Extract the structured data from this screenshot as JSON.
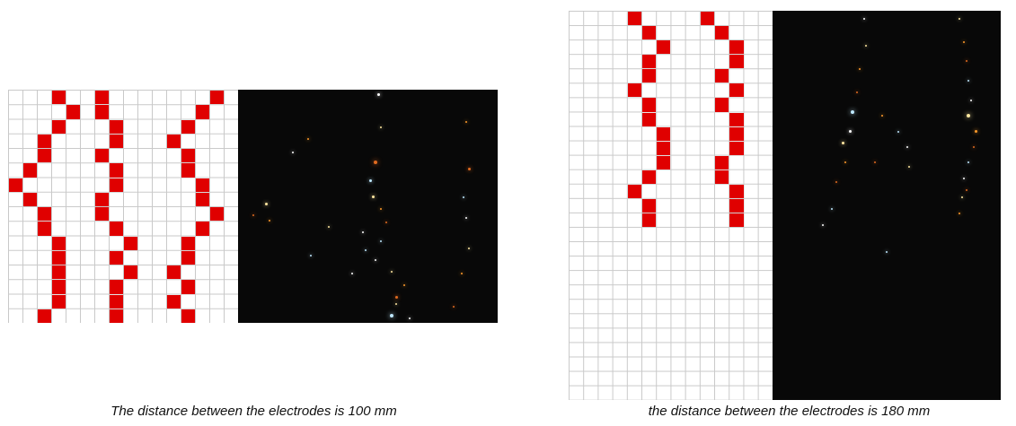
{
  "colors": {
    "cell_fill": "#e00000",
    "grid_line": "#c9c9c9",
    "background": "#ffffff",
    "photo_background": "#080808",
    "spark_colors": [
      "#ffffff",
      "#ffe7a0",
      "#ff9a2a",
      "#e06a20",
      "#bfe8ff"
    ]
  },
  "captions": {
    "left": "The distance between the electrodes is 100 mm",
    "right": "the distance between the electrodes is 180 mm"
  },
  "left_grid": {
    "columns": 16,
    "rows": 16,
    "filled_cells": [
      [
        3,
        0
      ],
      [
        4,
        1
      ],
      [
        3,
        2
      ],
      [
        2,
        3
      ],
      [
        2,
        4
      ],
      [
        1,
        5
      ],
      [
        0,
        6
      ],
      [
        1,
        7
      ],
      [
        2,
        8
      ],
      [
        2,
        9
      ],
      [
        3,
        10
      ],
      [
        3,
        11
      ],
      [
        3,
        12
      ],
      [
        3,
        13
      ],
      [
        3,
        14
      ],
      [
        2,
        15
      ],
      [
        6,
        0
      ],
      [
        6,
        1
      ],
      [
        7,
        2
      ],
      [
        7,
        3
      ],
      [
        6,
        4
      ],
      [
        7,
        5
      ],
      [
        7,
        6
      ],
      [
        6,
        7
      ],
      [
        6,
        8
      ],
      [
        7,
        9
      ],
      [
        8,
        10
      ],
      [
        7,
        11
      ],
      [
        8,
        12
      ],
      [
        7,
        13
      ],
      [
        7,
        14
      ],
      [
        7,
        15
      ],
      [
        14,
        0
      ],
      [
        13,
        1
      ],
      [
        12,
        2
      ],
      [
        11,
        3
      ],
      [
        12,
        4
      ],
      [
        12,
        5
      ],
      [
        13,
        6
      ],
      [
        13,
        7
      ],
      [
        14,
        8
      ],
      [
        13,
        9
      ],
      [
        12,
        10
      ],
      [
        12,
        11
      ],
      [
        11,
        12
      ],
      [
        12,
        13
      ],
      [
        11,
        14
      ],
      [
        12,
        15
      ]
    ]
  },
  "right_grid": {
    "columns": 14,
    "rows": 27,
    "filled_cells": [
      [
        4,
        0
      ],
      [
        5,
        1
      ],
      [
        6,
        2
      ],
      [
        5,
        3
      ],
      [
        5,
        4
      ],
      [
        4,
        5
      ],
      [
        5,
        6
      ],
      [
        5,
        7
      ],
      [
        6,
        8
      ],
      [
        6,
        9
      ],
      [
        6,
        10
      ],
      [
        5,
        11
      ],
      [
        4,
        12
      ],
      [
        5,
        13
      ],
      [
        5,
        14
      ],
      [
        9,
        0
      ],
      [
        10,
        1
      ],
      [
        11,
        2
      ],
      [
        11,
        3
      ],
      [
        10,
        4
      ],
      [
        11,
        5
      ],
      [
        10,
        6
      ],
      [
        11,
        7
      ],
      [
        11,
        8
      ],
      [
        11,
        9
      ],
      [
        10,
        10
      ],
      [
        10,
        11
      ],
      [
        11,
        12
      ],
      [
        11,
        13
      ],
      [
        11,
        14
      ]
    ]
  },
  "left_photo": {
    "sparks": [
      [
        0.54,
        0.02,
        3
      ],
      [
        0.55,
        0.16,
        2
      ],
      [
        0.27,
        0.21,
        2
      ],
      [
        0.53,
        0.31,
        4
      ],
      [
        0.51,
        0.39,
        3
      ],
      [
        0.21,
        0.27,
        2
      ],
      [
        0.52,
        0.46,
        3
      ],
      [
        0.55,
        0.51,
        2
      ],
      [
        0.57,
        0.57,
        2
      ],
      [
        0.55,
        0.65,
        2
      ],
      [
        0.53,
        0.73,
        2
      ],
      [
        0.59,
        0.78,
        2
      ],
      [
        0.64,
        0.84,
        2
      ],
      [
        0.61,
        0.89,
        3
      ],
      [
        0.59,
        0.97,
        4
      ],
      [
        0.66,
        0.98,
        2
      ],
      [
        0.11,
        0.49,
        3
      ],
      [
        0.12,
        0.56,
        2
      ],
      [
        0.06,
        0.54,
        2
      ],
      [
        0.28,
        0.71,
        2
      ],
      [
        0.48,
        0.61,
        2
      ],
      [
        0.61,
        0.92,
        2
      ],
      [
        0.88,
        0.14,
        2
      ],
      [
        0.89,
        0.34,
        3
      ],
      [
        0.87,
        0.46,
        2
      ],
      [
        0.88,
        0.55,
        2
      ],
      [
        0.89,
        0.68,
        2
      ],
      [
        0.86,
        0.79,
        2
      ],
      [
        0.83,
        0.93,
        2
      ],
      [
        0.49,
        0.69,
        2
      ],
      [
        0.44,
        0.79,
        2
      ],
      [
        0.35,
        0.59,
        2
      ]
    ]
  },
  "right_photo": {
    "sparks": [
      [
        0.4,
        0.02,
        2
      ],
      [
        0.41,
        0.09,
        2
      ],
      [
        0.38,
        0.15,
        2
      ],
      [
        0.37,
        0.21,
        2
      ],
      [
        0.35,
        0.26,
        4
      ],
      [
        0.34,
        0.31,
        3
      ],
      [
        0.31,
        0.34,
        3
      ],
      [
        0.32,
        0.39,
        2
      ],
      [
        0.28,
        0.44,
        2
      ],
      [
        0.26,
        0.51,
        2
      ],
      [
        0.22,
        0.55,
        2
      ],
      [
        0.82,
        0.02,
        2
      ],
      [
        0.84,
        0.08,
        2
      ],
      [
        0.85,
        0.13,
        2
      ],
      [
        0.86,
        0.18,
        2
      ],
      [
        0.87,
        0.23,
        2
      ],
      [
        0.86,
        0.27,
        4
      ],
      [
        0.89,
        0.31,
        3
      ],
      [
        0.88,
        0.35,
        2
      ],
      [
        0.86,
        0.39,
        2
      ],
      [
        0.84,
        0.43,
        2
      ],
      [
        0.83,
        0.48,
        2
      ],
      [
        0.82,
        0.52,
        2
      ],
      [
        0.85,
        0.46,
        2
      ],
      [
        0.55,
        0.31,
        2
      ],
      [
        0.59,
        0.35,
        2
      ],
      [
        0.6,
        0.4,
        2
      ],
      [
        0.48,
        0.27,
        2
      ],
      [
        0.45,
        0.39,
        2
      ],
      [
        0.5,
        0.62,
        2
      ]
    ]
  }
}
